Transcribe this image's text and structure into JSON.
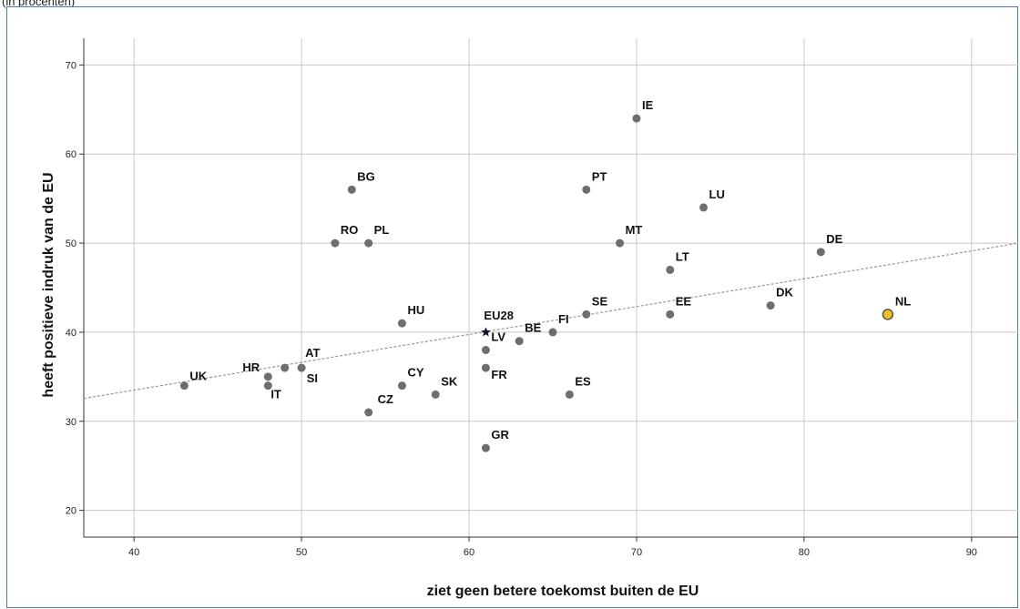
{
  "header": {
    "note": "(in procenten)"
  },
  "chart_data": {
    "type": "scatter",
    "xlabel": "ziet geen betere toekomst buiten de EU",
    "ylabel": "heeft positieve indruk van de EU",
    "xlim": [
      37,
      93
    ],
    "ylim": [
      17,
      73
    ],
    "xticks": [
      40,
      50,
      60,
      70,
      80,
      90
    ],
    "yticks": [
      20,
      30,
      40,
      50,
      60,
      70
    ],
    "grid": true,
    "colors": {
      "point": "#6e6e6e",
      "highlight": "#f0c020",
      "highlight_stroke": "#555555",
      "marker": "#1a1030",
      "trend": "#999999",
      "grid": "#c8c8c8"
    },
    "trendline": {
      "style": "dashed",
      "slope": 0.3125,
      "intercept": 21.0
    },
    "points": [
      {
        "label": "UK",
        "x": 43,
        "y": 34
      },
      {
        "label": "HR",
        "x": 48,
        "y": 35
      },
      {
        "label": "IT",
        "x": 48,
        "y": 34
      },
      {
        "label": "AT",
        "x": 50,
        "y": 36
      },
      {
        "label": "SI",
        "x": 49,
        "y": 36
      },
      {
        "label": "RO",
        "x": 52,
        "y": 50
      },
      {
        "label": "PL",
        "x": 54,
        "y": 50
      },
      {
        "label": "BG",
        "x": 53,
        "y": 56
      },
      {
        "label": "CZ",
        "x": 54,
        "y": 31
      },
      {
        "label": "HU",
        "x": 56,
        "y": 41
      },
      {
        "label": "CY",
        "x": 56,
        "y": 34
      },
      {
        "label": "SK",
        "x": 58,
        "y": 33
      },
      {
        "label": "LV",
        "x": 61,
        "y": 38
      },
      {
        "label": "FR",
        "x": 61,
        "y": 36
      },
      {
        "label": "GR",
        "x": 61,
        "y": 27
      },
      {
        "label": "BE",
        "x": 63,
        "y": 39
      },
      {
        "label": "FI",
        "x": 65,
        "y": 40
      },
      {
        "label": "ES",
        "x": 66,
        "y": 33
      },
      {
        "label": "PT",
        "x": 67,
        "y": 56
      },
      {
        "label": "SE",
        "x": 67,
        "y": 42
      },
      {
        "label": "MT",
        "x": 69,
        "y": 50
      },
      {
        "label": "IE",
        "x": 70,
        "y": 64
      },
      {
        "label": "LT",
        "x": 72,
        "y": 47
      },
      {
        "label": "EE",
        "x": 72,
        "y": 42
      },
      {
        "label": "LU",
        "x": 74,
        "y": 54
      },
      {
        "label": "DK",
        "x": 78,
        "y": 43
      },
      {
        "label": "DE",
        "x": 81,
        "y": 49
      },
      {
        "label": "NL",
        "x": 85,
        "y": 42,
        "highlight": true
      },
      {
        "label": "EU28",
        "x": 61,
        "y": 40,
        "marker": "star"
      }
    ]
  }
}
